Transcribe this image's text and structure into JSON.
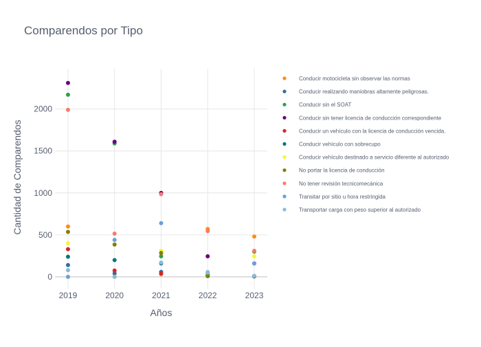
{
  "chart_data": {
    "type": "scatter",
    "title": "Comparendos por Tipo",
    "xlabel": "Años",
    "ylabel": "Cantidad de Comparendos",
    "x": [
      2019,
      2020,
      2021,
      2022,
      2023
    ],
    "xticks": [
      "2019",
      "2020",
      "2021",
      "2022",
      "2023"
    ],
    "yticks": [
      0,
      500,
      1000,
      1500,
      2000
    ],
    "ylim": [
      -140,
      2480
    ],
    "grid": true,
    "legend_position": "right",
    "series": [
      {
        "name": "Conducir motocicleta sin observar las normas",
        "color": "#ff8c1a",
        "values": [
          600,
          0,
          30,
          570,
          480
        ]
      },
      {
        "name": "Conducir realizando maniobras altamente peligrosas.",
        "color": "#2f6fa7",
        "values": [
          140,
          40,
          60,
          10,
          5
        ]
      },
      {
        "name": "Conducir sin el SOAT",
        "color": "#2ca24a",
        "values": [
          2170,
          1590,
          245,
          30,
          300
        ]
      },
      {
        "name": "Conducir sin tener licencia de conducción correspondiente",
        "color": "#6a0080",
        "values": [
          2310,
          1610,
          1000,
          245,
          160
        ]
      },
      {
        "name": "Conducir un vehículo con la licencia de conducción vencida.",
        "color": "#d62728",
        "values": [
          330,
          75,
          40,
          10,
          5
        ]
      },
      {
        "name": "Conducir vehículo con sobrecupo",
        "color": "#00797e",
        "values": [
          240,
          200,
          160,
          10,
          5
        ]
      },
      {
        "name": "Conducir vehículo destinado a servicio diferente al autorizado",
        "color": "#f7f72f",
        "values": [
          400,
          0,
          310,
          20,
          245
        ]
      },
      {
        "name": "No portar la licencia de conducción",
        "color": "#808000",
        "values": [
          535,
          385,
          285,
          20,
          10
        ]
      },
      {
        "name": "No tener revisión tecnicomecánica",
        "color": "#fa7a6a",
        "values": [
          1990,
          515,
          985,
          545,
          310
        ]
      },
      {
        "name": "Transitar por sitio u hora restringida",
        "color": "#6a9fd8",
        "values": [
          0,
          440,
          640,
          55,
          160
        ]
      },
      {
        "name": "Transportar carga con peso superior al autorizado",
        "color": "#8ab8dc",
        "values": [
          80,
          0,
          170,
          50,
          10
        ]
      }
    ]
  }
}
